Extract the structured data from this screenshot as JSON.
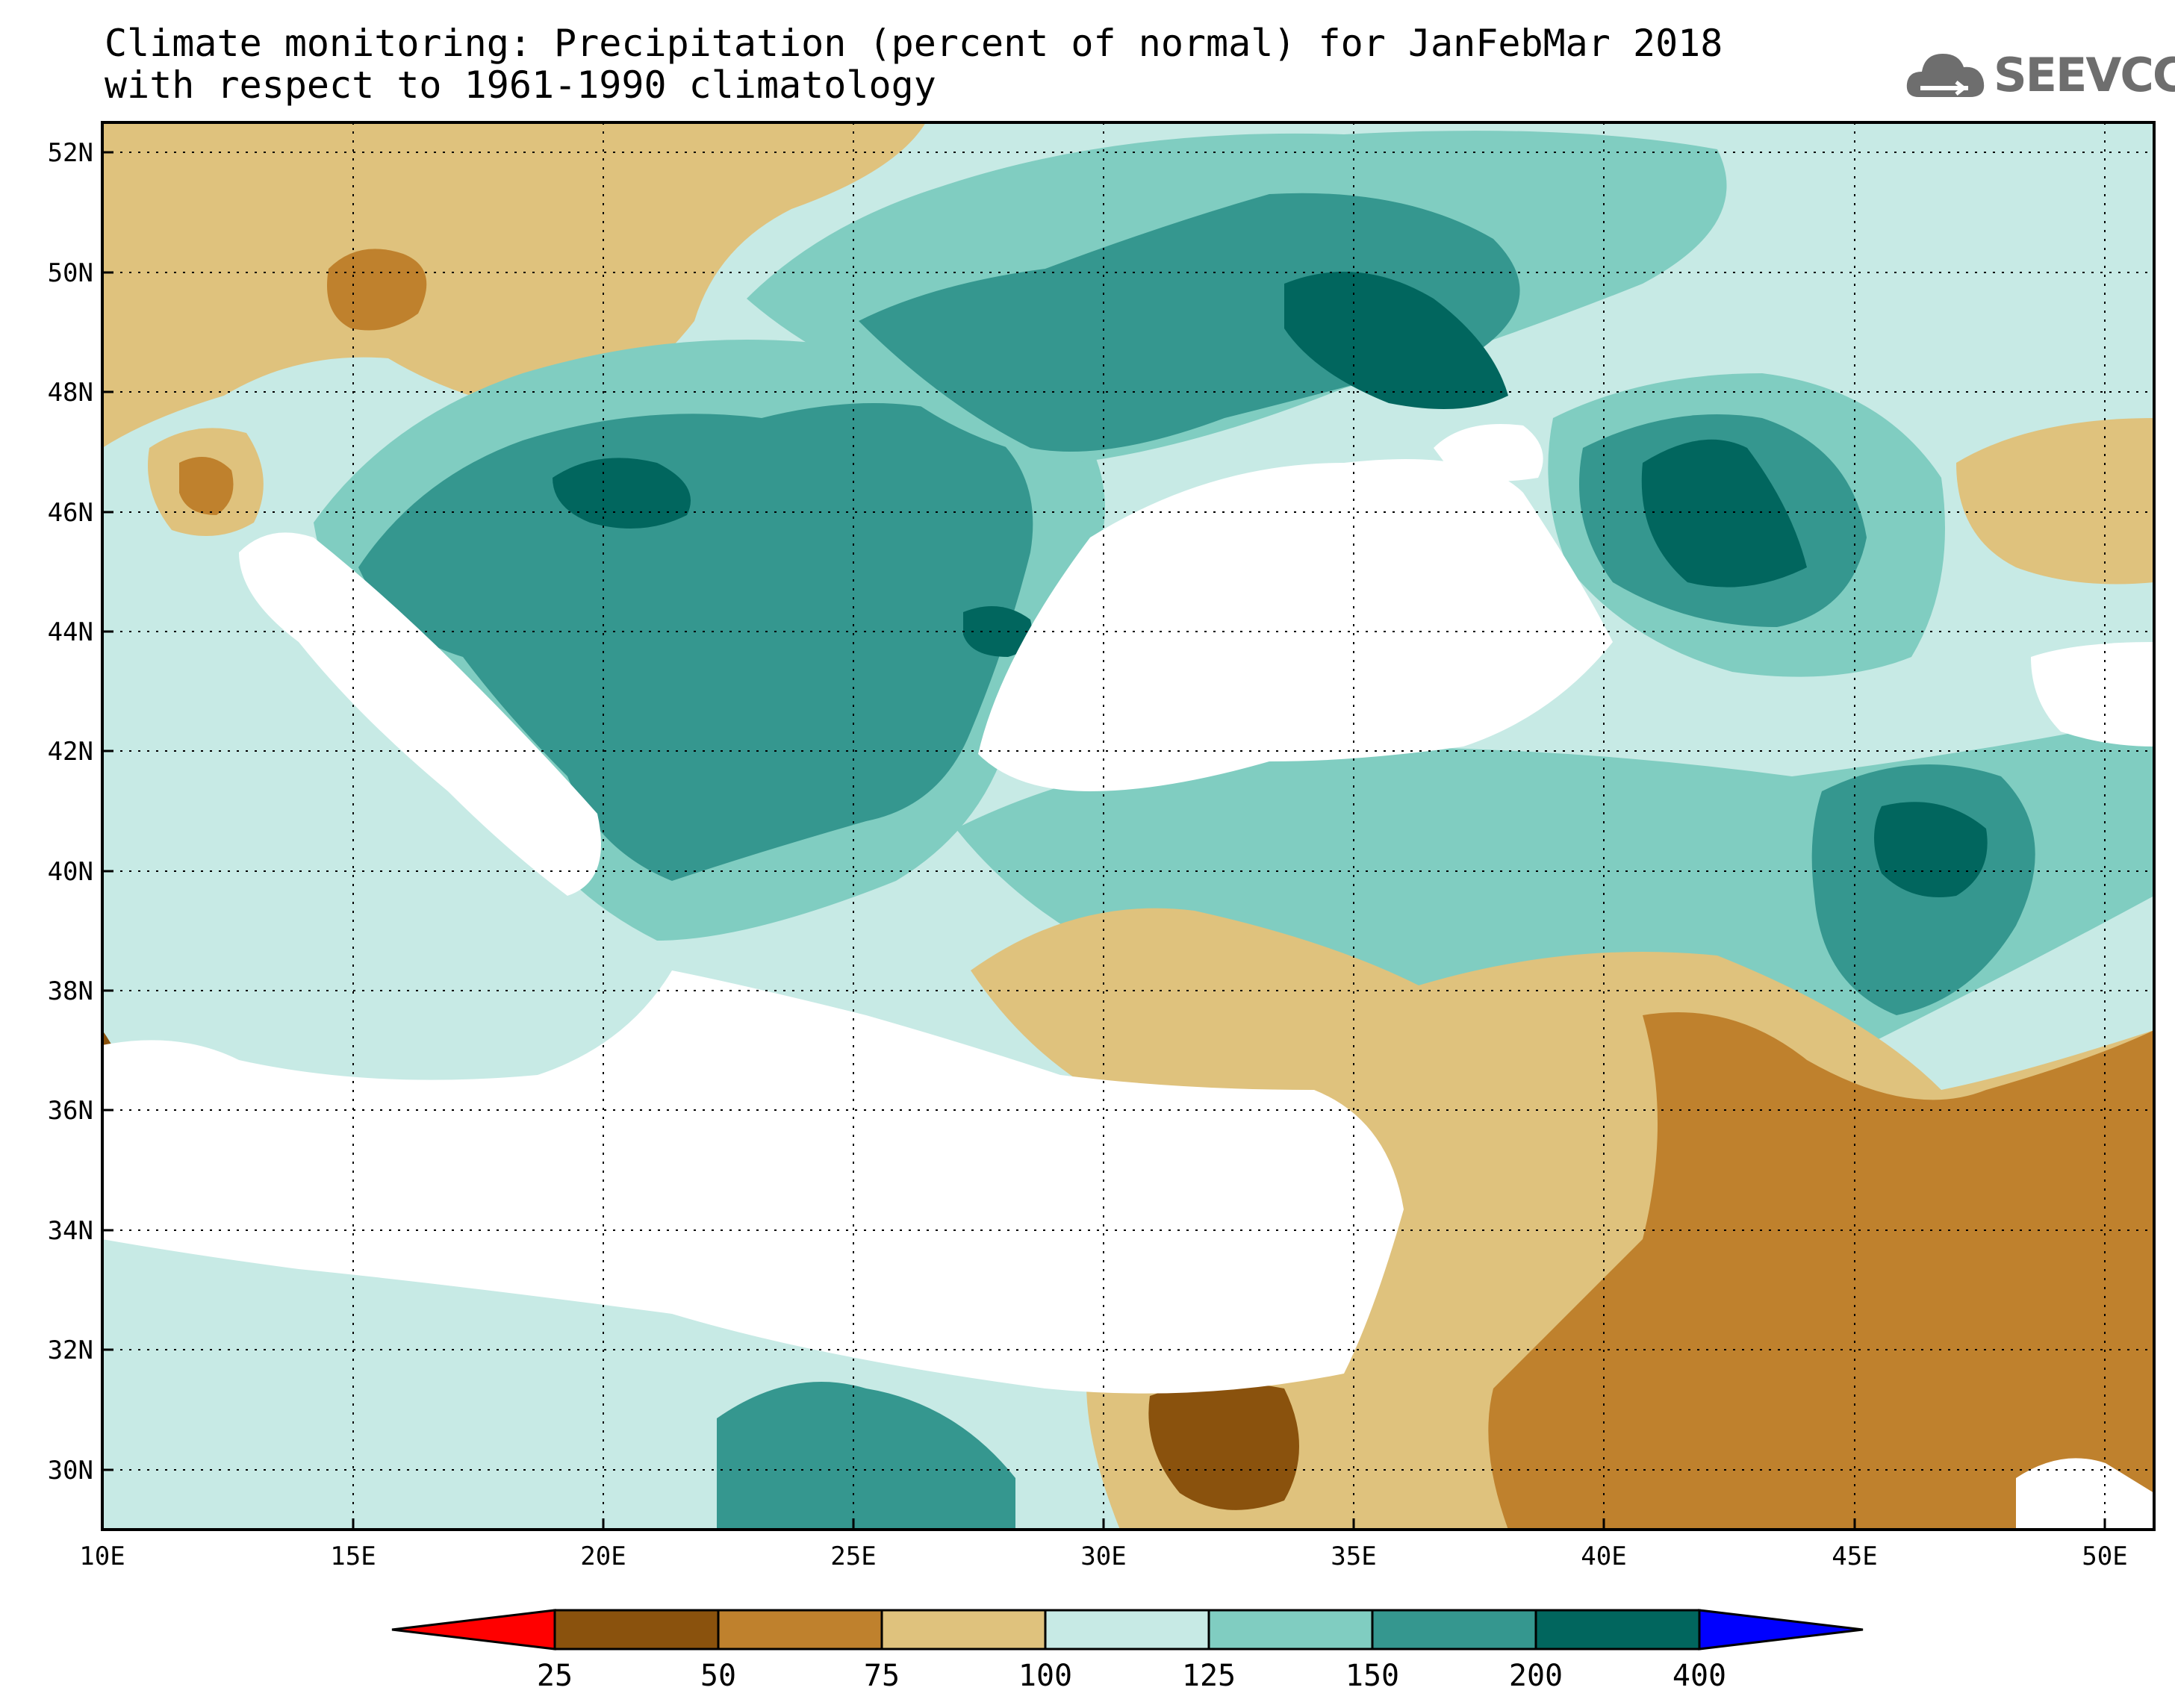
{
  "title": {
    "line1": "Climate monitoring: Precipitation (percent of normal) for JanFebMar 2018",
    "line2": "with respect to 1961-1990 climatology"
  },
  "logo": {
    "text": "SEEVCCC",
    "icon": "cloud-logo-icon",
    "color": "#6e6e6e"
  },
  "map": {
    "lon_labels": [
      "10E",
      "15E",
      "20E",
      "25E",
      "30E",
      "35E",
      "40E",
      "45E",
      "50E"
    ],
    "lat_labels": [
      "52N",
      "50N",
      "48N",
      "46N",
      "44N",
      "42N",
      "40N",
      "38N",
      "36N",
      "34N",
      "32N",
      "30N"
    ],
    "lon_range": [
      10,
      51
    ],
    "lat_range": [
      29,
      52.5
    ],
    "grid": "dotted"
  },
  "legend": {
    "bins": [
      "25",
      "50",
      "75",
      "100",
      "125",
      "150",
      "200",
      "400"
    ],
    "colors": {
      "under": "#ff0000",
      "c25_50": "#8a520d",
      "c50_75": "#bf812d",
      "c75_100": "#dfc27d",
      "c100_125": "#c7eae5",
      "c125_150": "#80cdc1",
      "c150_200": "#35978f",
      "c200_400": "#01665e",
      "over": "#0000ff"
    }
  }
}
